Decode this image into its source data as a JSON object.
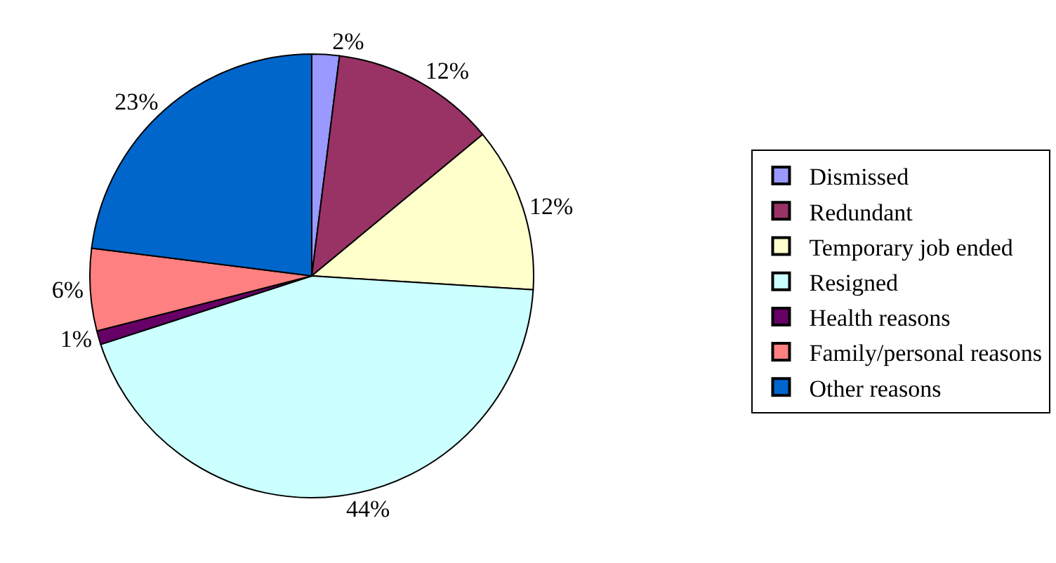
{
  "chart_data": {
    "type": "pie",
    "categories": [
      "Dismissed",
      "Redundant",
      "Temporary job ended",
      "Resigned",
      "Health reasons",
      "Family/personal reasons",
      "Other reasons"
    ],
    "values": [
      2,
      12,
      12,
      44,
      1,
      6,
      23
    ],
    "colors": [
      "#9999ff",
      "#993366",
      "#ffffcc",
      "#ccffff",
      "#660066",
      "#ff8080",
      "#0066cc"
    ],
    "value_labels": [
      "2%",
      "12%",
      "12%",
      "44%",
      "1%",
      "6%",
      "23%"
    ],
    "legend": "right"
  }
}
